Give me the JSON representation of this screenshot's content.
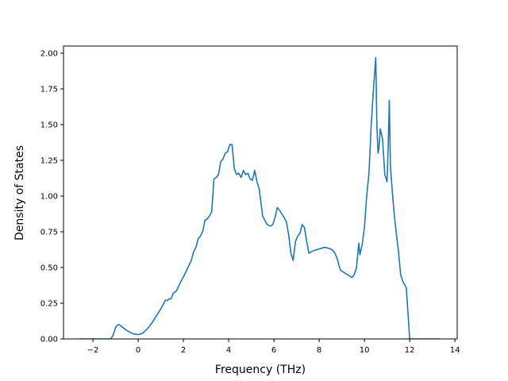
{
  "chart_data": {
    "type": "line",
    "title": "",
    "xlabel": "Frequency (THz)",
    "ylabel": "Density of States",
    "xlim": [
      -3.3,
      14.1
    ],
    "ylim": [
      0.0,
      2.05
    ],
    "xticks": [
      -2,
      0,
      2,
      4,
      6,
      8,
      10,
      12,
      14
    ],
    "xtick_labels": [
      "−2",
      "0",
      "2",
      "4",
      "6",
      "8",
      "10",
      "12",
      "14"
    ],
    "yticks": [
      0.0,
      0.25,
      0.5,
      0.75,
      1.0,
      1.25,
      1.5,
      1.75,
      2.0
    ],
    "ytick_labels": [
      "0.00",
      "0.25",
      "0.50",
      "0.75",
      "1.00",
      "1.25",
      "1.50",
      "1.75",
      "2.00"
    ],
    "grid": false,
    "line_color": "#1f77b4",
    "series": [
      {
        "x": [
          -2.6,
          -1.2,
          -1.1,
          -1.0,
          -0.9,
          -0.85,
          -0.75,
          -0.6,
          -0.4,
          -0.2,
          0.0,
          0.2,
          0.4,
          0.6,
          0.8,
          1.0,
          1.2,
          1.3,
          1.35,
          1.45,
          1.55,
          1.65,
          1.7,
          1.85,
          1.95,
          2.05,
          2.2,
          2.35,
          2.45,
          2.55,
          2.65,
          2.75,
          2.85,
          2.95,
          3.05,
          3.15,
          3.25,
          3.35,
          3.45,
          3.55,
          3.65,
          3.75,
          3.85,
          3.95,
          4.05,
          4.15,
          4.25,
          4.35,
          4.45,
          4.55,
          4.65,
          4.75,
          4.85,
          4.95,
          5.05,
          5.15,
          5.25,
          5.35,
          5.5,
          5.7,
          5.85,
          5.95,
          6.05,
          6.15,
          6.25,
          6.45,
          6.55,
          6.65,
          6.75,
          6.85,
          6.95,
          7.05,
          7.15,
          7.25,
          7.35,
          7.45,
          7.55,
          7.65,
          7.8,
          8.0,
          8.2,
          8.3,
          8.5,
          8.6,
          8.7,
          8.8,
          8.9,
          8.95,
          9.05,
          9.15,
          9.25,
          9.35,
          9.45,
          9.55,
          9.65,
          9.75,
          9.8,
          9.9,
          10.0,
          10.1,
          10.2,
          10.3,
          10.4,
          10.5,
          10.55,
          10.6,
          10.65,
          10.7,
          10.8,
          10.9,
          11.0,
          11.05,
          11.1,
          11.15,
          11.2,
          11.3,
          11.4,
          11.5,
          11.6,
          11.7,
          11.85,
          11.95,
          12.0,
          12.05,
          12.1,
          13.3
        ],
        "y": [
          0.0,
          0.0,
          0.03,
          0.08,
          0.1,
          0.1,
          0.09,
          0.07,
          0.05,
          0.035,
          0.03,
          0.04,
          0.07,
          0.11,
          0.16,
          0.21,
          0.27,
          0.27,
          0.28,
          0.28,
          0.32,
          0.33,
          0.34,
          0.39,
          0.42,
          0.45,
          0.5,
          0.55,
          0.61,
          0.64,
          0.7,
          0.72,
          0.75,
          0.83,
          0.84,
          0.86,
          0.89,
          1.12,
          1.13,
          1.15,
          1.24,
          1.26,
          1.3,
          1.31,
          1.36,
          1.36,
          1.19,
          1.15,
          1.16,
          1.13,
          1.18,
          1.15,
          1.16,
          1.12,
          1.11,
          1.18,
          1.1,
          1.05,
          0.86,
          0.8,
          0.79,
          0.8,
          0.85,
          0.92,
          0.9,
          0.85,
          0.82,
          0.73,
          0.6,
          0.55,
          0.68,
          0.72,
          0.74,
          0.8,
          0.78,
          0.68,
          0.6,
          0.61,
          0.62,
          0.63,
          0.64,
          0.64,
          0.63,
          0.62,
          0.6,
          0.56,
          0.5,
          0.48,
          0.47,
          0.46,
          0.45,
          0.44,
          0.43,
          0.45,
          0.5,
          0.67,
          0.59,
          0.66,
          0.78,
          1.0,
          1.16,
          1.5,
          1.75,
          1.97,
          1.5,
          1.3,
          1.35,
          1.47,
          1.4,
          1.15,
          1.1,
          1.35,
          1.67,
          1.2,
          1.1,
          0.9,
          0.75,
          0.62,
          0.45,
          0.4,
          0.36,
          0.12,
          0.0,
          0.0,
          0.0,
          0.0
        ]
      }
    ]
  }
}
